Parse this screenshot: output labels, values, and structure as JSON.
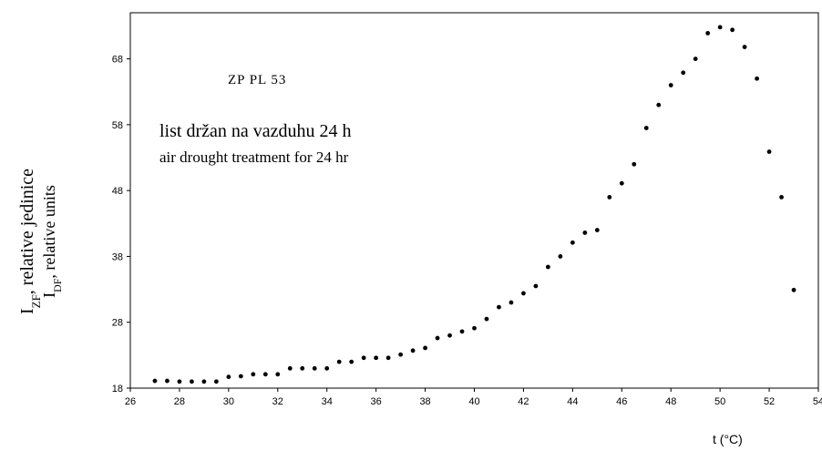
{
  "chart_data": {
    "type": "scatter",
    "annotations": [
      "ZP PL 53",
      "list držan na vazduhu 24 h",
      "air drought treatment for 24 hr"
    ],
    "ylabel": [
      [
        "I",
        "ZF",
        ", relative jedinice"
      ],
      [
        "I",
        "DF",
        ", relative units"
      ]
    ],
    "xlabel": "t (°C)",
    "color": "#000000",
    "x": [
      27,
      27.5,
      28,
      28.5,
      29,
      29.5,
      30,
      30.5,
      31,
      31.5,
      32,
      32.5,
      33,
      33.5,
      34,
      34.5,
      35,
      35.5,
      36,
      36.5,
      37,
      37.5,
      38,
      38.5,
      39,
      39.5,
      40,
      40.5,
      41,
      41.5,
      42,
      42.5,
      43,
      43.5,
      44,
      44.5,
      45,
      45.5,
      46,
      46.5,
      47,
      47.5,
      48,
      48.5,
      49,
      49.5,
      50,
      50.5,
      51,
      51.5,
      52,
      52.5,
      53
    ],
    "y": [
      19.1,
      19.1,
      19,
      19,
      19,
      19,
      19.7,
      19.8,
      20.1,
      20.1,
      20.1,
      21,
      21,
      21,
      21,
      22,
      22,
      22.6,
      22.6,
      22.6,
      23.1,
      23.7,
      24.1,
      25.6,
      26,
      26.6,
      27.1,
      28.5,
      30.3,
      31,
      32.4,
      33.5,
      36.4,
      38,
      40.1,
      41.6,
      42,
      47,
      49.1,
      52,
      57.5,
      61,
      64,
      65.9,
      68,
      71.9,
      72.8,
      72.4,
      69.8,
      65,
      53.9,
      47,
      32.9
    ],
    "xlim": [
      26,
      54
    ],
    "ylim": [
      18,
      75
    ],
    "xticks": [
      26,
      28,
      30,
      32,
      34,
      36,
      38,
      40,
      42,
      44,
      46,
      48,
      50,
      52,
      54
    ],
    "yticks": [
      18,
      28,
      38,
      48,
      58,
      68
    ]
  }
}
